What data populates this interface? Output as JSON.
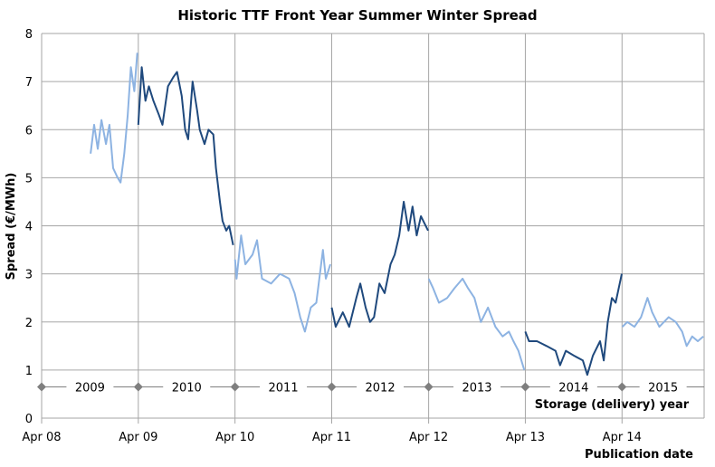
{
  "chart_data": {
    "type": "line",
    "title": "Historic TTF Front Year Summer Winter Spread",
    "ylabel": "Spread (€/MWh)",
    "xlabel": "Publication date",
    "ylim": [
      0,
      8
    ],
    "yticks": [
      "0",
      "1",
      "2",
      "3",
      "4",
      "5",
      "6",
      "7",
      "8"
    ],
    "xlim": [
      "2008-04-01",
      "2015-02-05"
    ],
    "xticks": [
      {
        "date": "2008-04-01",
        "label": "Apr 08"
      },
      {
        "date": "2009-04-01",
        "label": "Apr 09"
      },
      {
        "date": "2010-04-01",
        "label": "Apr 10"
      },
      {
        "date": "2011-04-01",
        "label": "Apr 11"
      },
      {
        "date": "2012-04-01",
        "label": "Apr 12"
      },
      {
        "date": "2013-04-01",
        "label": "Apr 13"
      },
      {
        "date": "2014-04-01",
        "label": "Apr 14"
      }
    ],
    "grid": true,
    "colors": {
      "light": "#8db3e2",
      "dark": "#1f497d",
      "grid": "#a6a6a6",
      "annotation": "#7f7f7f"
    },
    "storage_year_annotation": {
      "label": "Storage (delivery) year",
      "value": 0.65,
      "boundaries": [
        "2008-04-01",
        "2009-04-01",
        "2010-04-01",
        "2011-04-01",
        "2012-04-01",
        "2013-04-01",
        "2014-04-01"
      ],
      "years": [
        "2009",
        "2010",
        "2011",
        "2012",
        "2013",
        "2014",
        "2015"
      ]
    },
    "series": [
      {
        "storage_year": "2009",
        "shade": "light",
        "points": [
          [
            "2008-10-03",
            5.5
          ],
          [
            "2008-10-16",
            6.1
          ],
          [
            "2008-10-30",
            5.6
          ],
          [
            "2008-11-13",
            6.2
          ],
          [
            "2008-11-30",
            5.7
          ],
          [
            "2008-12-13",
            6.1
          ],
          [
            "2008-12-27",
            5.2
          ],
          [
            "2009-01-13",
            5.0
          ],
          [
            "2009-01-24",
            4.9
          ],
          [
            "2009-02-07",
            5.5
          ],
          [
            "2009-02-20",
            6.3
          ],
          [
            "2009-03-04",
            7.3
          ],
          [
            "2009-03-17",
            6.8
          ],
          [
            "2009-03-28",
            7.6
          ]
        ]
      },
      {
        "storage_year": "2010",
        "shade": "dark",
        "points": [
          [
            "2009-04-01",
            6.1
          ],
          [
            "2009-04-14",
            7.3
          ],
          [
            "2009-04-28",
            6.6
          ],
          [
            "2009-05-11",
            6.9
          ],
          [
            "2009-05-28",
            6.6
          ],
          [
            "2009-06-18",
            6.3
          ],
          [
            "2009-07-01",
            6.1
          ],
          [
            "2009-07-22",
            6.9
          ],
          [
            "2009-08-12",
            7.1
          ],
          [
            "2009-08-25",
            7.2
          ],
          [
            "2009-09-12",
            6.7
          ],
          [
            "2009-09-25",
            6.0
          ],
          [
            "2009-10-06",
            5.8
          ],
          [
            "2009-10-23",
            7.0
          ],
          [
            "2009-11-09",
            6.4
          ],
          [
            "2009-11-19",
            6.0
          ],
          [
            "2009-12-07",
            5.7
          ],
          [
            "2009-12-22",
            6.0
          ],
          [
            "2010-01-09",
            5.9
          ],
          [
            "2010-01-19",
            5.2
          ],
          [
            "2010-02-03",
            4.5
          ],
          [
            "2010-02-13",
            4.1
          ],
          [
            "2010-02-27",
            3.9
          ],
          [
            "2010-03-10",
            4.0
          ],
          [
            "2010-03-25",
            3.6
          ]
        ]
      },
      {
        "storage_year": "2011",
        "shade": "light",
        "points": [
          [
            "2010-04-01",
            3.3
          ],
          [
            "2010-04-07",
            2.9
          ],
          [
            "2010-04-24",
            3.8
          ],
          [
            "2010-05-10",
            3.2
          ],
          [
            "2010-06-06",
            3.4
          ],
          [
            "2010-06-23",
            3.7
          ],
          [
            "2010-07-12",
            2.9
          ],
          [
            "2010-08-15",
            2.8
          ],
          [
            "2010-09-18",
            3.0
          ],
          [
            "2010-10-22",
            2.9
          ],
          [
            "2010-11-12",
            2.6
          ],
          [
            "2010-12-03",
            2.1
          ],
          [
            "2010-12-21",
            1.8
          ],
          [
            "2011-01-12",
            2.3
          ],
          [
            "2011-02-02",
            2.4
          ],
          [
            "2011-02-27",
            3.5
          ],
          [
            "2011-03-10",
            2.9
          ],
          [
            "2011-03-27",
            3.2
          ]
        ]
      },
      {
        "storage_year": "2012",
        "shade": "dark",
        "points": [
          [
            "2011-04-01",
            2.3
          ],
          [
            "2011-04-16",
            1.9
          ],
          [
            "2011-05-13",
            2.2
          ],
          [
            "2011-06-06",
            1.9
          ],
          [
            "2011-07-03",
            2.5
          ],
          [
            "2011-07-18",
            2.8
          ],
          [
            "2011-08-07",
            2.3
          ],
          [
            "2011-08-24",
            2.0
          ],
          [
            "2011-09-08",
            2.1
          ],
          [
            "2011-09-28",
            2.8
          ],
          [
            "2011-10-18",
            2.6
          ],
          [
            "2011-11-09",
            3.2
          ],
          [
            "2011-11-25",
            3.4
          ],
          [
            "2011-12-12",
            3.8
          ],
          [
            "2011-12-29",
            4.5
          ],
          [
            "2012-01-16",
            3.9
          ],
          [
            "2012-01-31",
            4.4
          ],
          [
            "2012-02-16",
            3.8
          ],
          [
            "2012-03-03",
            4.2
          ],
          [
            "2012-03-30",
            3.9
          ]
        ]
      },
      {
        "storage_year": "2013",
        "shade": "light",
        "points": [
          [
            "2012-04-01",
            2.9
          ],
          [
            "2012-04-18",
            2.7
          ],
          [
            "2012-05-10",
            2.4
          ],
          [
            "2012-06-10",
            2.5
          ],
          [
            "2012-07-07",
            2.7
          ],
          [
            "2012-08-07",
            2.9
          ],
          [
            "2012-08-28",
            2.7
          ],
          [
            "2012-09-21",
            2.5
          ],
          [
            "2012-10-15",
            2.0
          ],
          [
            "2012-11-11",
            2.3
          ],
          [
            "2012-12-09",
            1.9
          ],
          [
            "2013-01-05",
            1.7
          ],
          [
            "2013-01-29",
            1.8
          ],
          [
            "2013-02-15",
            1.6
          ],
          [
            "2013-03-06",
            1.4
          ],
          [
            "2013-03-28",
            1.0
          ]
        ]
      },
      {
        "storage_year": "2014",
        "shade": "dark",
        "points": [
          [
            "2013-04-01",
            1.8
          ],
          [
            "2013-04-15",
            1.6
          ],
          [
            "2013-05-15",
            1.6
          ],
          [
            "2013-06-20",
            1.5
          ],
          [
            "2013-07-24",
            1.4
          ],
          [
            "2013-08-10",
            1.1
          ],
          [
            "2013-09-01",
            1.4
          ],
          [
            "2013-10-01",
            1.3
          ],
          [
            "2013-11-04",
            1.2
          ],
          [
            "2013-11-21",
            0.9
          ],
          [
            "2013-12-12",
            1.3
          ],
          [
            "2014-01-08",
            1.6
          ],
          [
            "2014-01-22",
            1.2
          ],
          [
            "2014-02-06",
            2.0
          ],
          [
            "2014-02-22",
            2.5
          ],
          [
            "2014-03-08",
            2.4
          ],
          [
            "2014-03-31",
            3.0
          ]
        ]
      },
      {
        "storage_year": "2015",
        "shade": "light",
        "points": [
          [
            "2014-04-02",
            1.9
          ],
          [
            "2014-04-21",
            2.0
          ],
          [
            "2014-05-18",
            1.9
          ],
          [
            "2014-06-12",
            2.1
          ],
          [
            "2014-07-06",
            2.5
          ],
          [
            "2014-07-24",
            2.2
          ],
          [
            "2014-08-20",
            1.9
          ],
          [
            "2014-09-24",
            2.1
          ],
          [
            "2014-10-21",
            2.0
          ],
          [
            "2014-11-14",
            1.8
          ],
          [
            "2014-12-01",
            1.5
          ],
          [
            "2014-12-22",
            1.7
          ],
          [
            "2015-01-12",
            1.6
          ],
          [
            "2015-02-02",
            1.7
          ]
        ]
      }
    ]
  }
}
